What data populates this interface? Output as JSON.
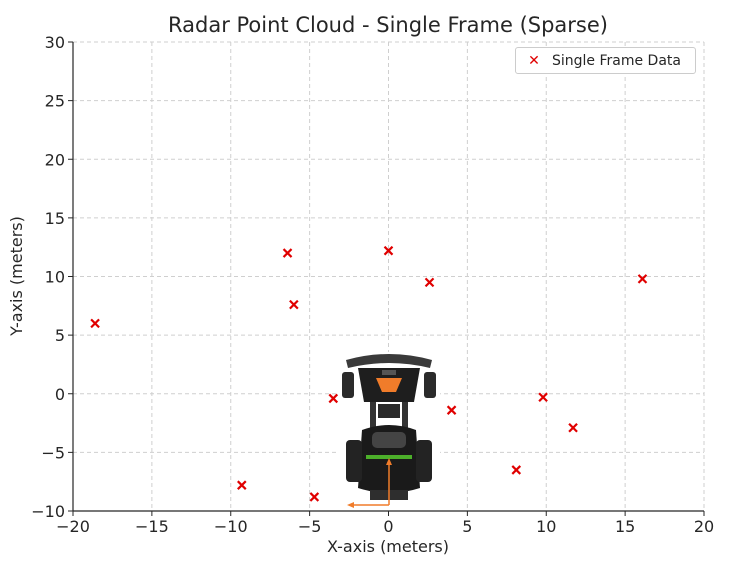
{
  "chart_data": {
    "type": "scatter",
    "title": "Radar Point Cloud - Single Frame (Sparse)",
    "xlabel": "X-axis (meters)",
    "ylabel": "Y-axis (meters)",
    "xlim": [
      -20,
      20
    ],
    "ylim": [
      -10,
      30
    ],
    "xticks": [
      -20,
      -15,
      -10,
      -5,
      0,
      5,
      10,
      15,
      20
    ],
    "yticks": [
      -10,
      -5,
      0,
      5,
      10,
      15,
      20,
      25,
      30
    ],
    "xtick_labels": [
      "−20",
      "−15",
      "−10",
      "−5",
      "0",
      "5",
      "10",
      "15",
      "20"
    ],
    "ytick_labels": [
      "−10",
      "−5",
      "0",
      "5",
      "10",
      "15",
      "20",
      "25",
      "30"
    ],
    "grid": true,
    "legend_position": "top-right",
    "series": [
      {
        "name": "Single Frame Data",
        "color": "#e00000",
        "marker": "x",
        "points": [
          {
            "x": -18.6,
            "y": 6.0
          },
          {
            "x": -9.3,
            "y": -7.8
          },
          {
            "x": -6.4,
            "y": 12.0
          },
          {
            "x": -6.0,
            "y": 7.6
          },
          {
            "x": -4.7,
            "y": -8.8
          },
          {
            "x": -3.5,
            "y": -0.4
          },
          {
            "x": 0.0,
            "y": 12.2
          },
          {
            "x": 2.6,
            "y": 9.5
          },
          {
            "x": 4.0,
            "y": -1.4
          },
          {
            "x": 8.1,
            "y": -6.5
          },
          {
            "x": 9.8,
            "y": -0.3
          },
          {
            "x": 11.7,
            "y": -2.9
          },
          {
            "x": 16.1,
            "y": 9.8
          }
        ]
      }
    ]
  },
  "vehicle_image": {
    "icon": "vehicle-topdown-icon"
  }
}
